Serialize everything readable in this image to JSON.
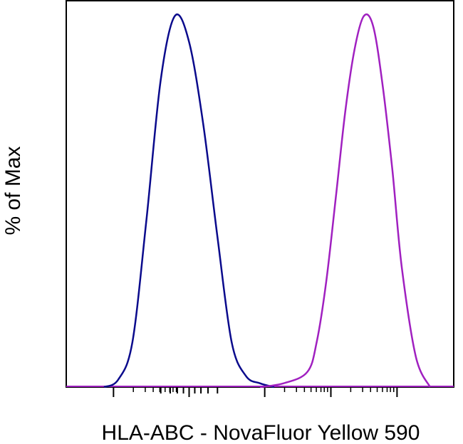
{
  "chart_data": {
    "type": "line",
    "title": "",
    "xlabel": "HLA-ABC - NovaFluor Yellow 590",
    "ylabel": "% of Max",
    "x_scale": "biexponential",
    "ylim": [
      0,
      100
    ],
    "grid": false,
    "legend": "none",
    "series": [
      {
        "color": "#0a0a8c",
        "x": [
          -1.8,
          -1.5,
          -1.2,
          -0.9,
          -0.6,
          -0.3,
          0.0,
          0.3,
          0.6,
          0.9,
          1.2,
          1.5,
          1.8
        ],
        "y": [
          0,
          2,
          12,
          45,
          82,
          99,
          92,
          70,
          40,
          12,
          3,
          1,
          0
        ]
      },
      {
        "color": "#a020c0",
        "x": [
          1.5,
          2.0,
          2.5,
          2.7,
          2.9,
          3.1,
          3.3,
          3.5,
          3.7,
          3.9,
          4.1,
          4.3,
          4.5,
          4.8,
          5.1
        ],
        "y": [
          0,
          1,
          4,
          12,
          28,
          50,
          73,
          90,
          99,
          96,
          80,
          58,
          32,
          8,
          0
        ]
      }
    ],
    "colors": {
      "axis": "#000000"
    }
  }
}
